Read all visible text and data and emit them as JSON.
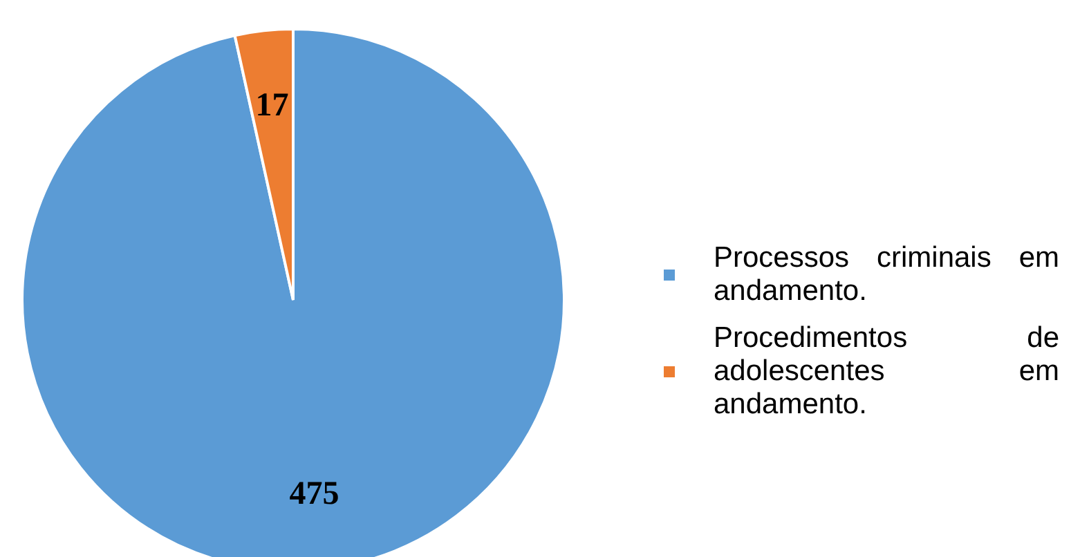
{
  "chart_data": {
    "type": "pie",
    "categories": [
      "Processos criminais em andamento.",
      "Procedimentos de adolescentes em andamento."
    ],
    "values": [
      475,
      17
    ],
    "colors": [
      "#5b9bd5",
      "#ed7d31"
    ],
    "data_labels": true,
    "legend": "right"
  }
}
